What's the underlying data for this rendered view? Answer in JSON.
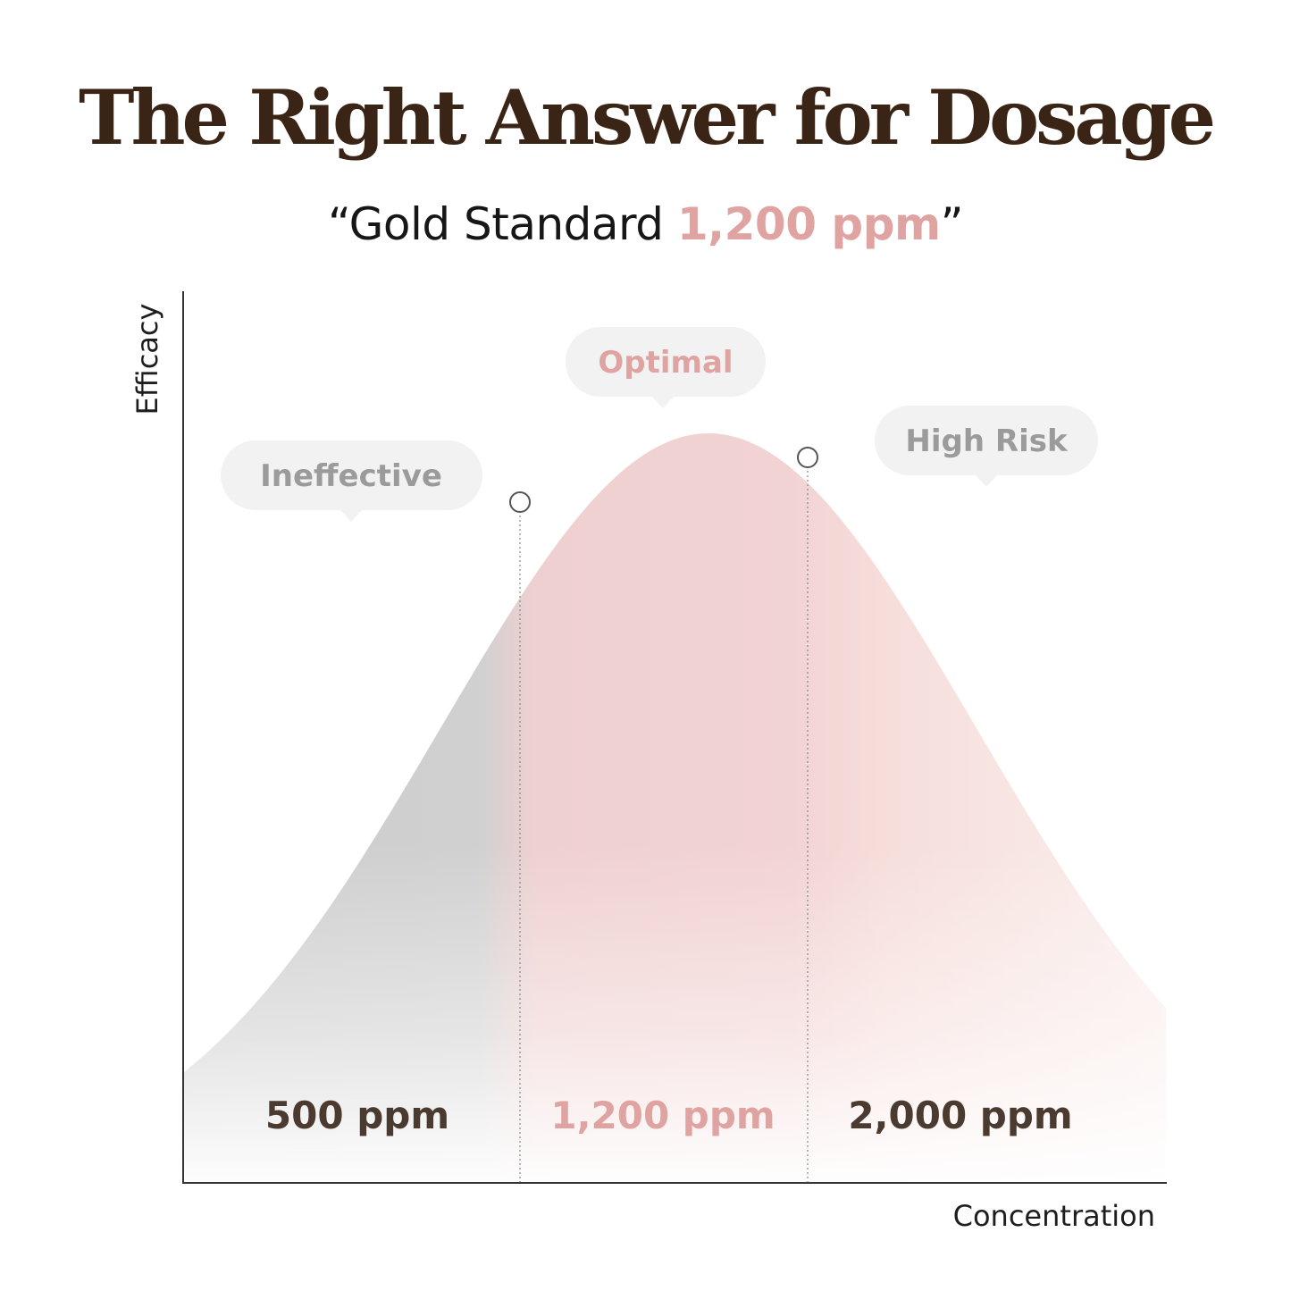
{
  "header": {
    "title": "The Right Answer for Dosage",
    "subtitle_open": "“Gold Standard ",
    "subtitle_highlight": "1,200 ppm",
    "subtitle_close": "”"
  },
  "chart_data": {
    "type": "area",
    "xlabel": "Concentration",
    "ylabel": "Efficacy",
    "curve_shape": "bell",
    "grid": false,
    "zones": [
      {
        "name": "Ineffective",
        "value_label": "500 ppm",
        "color": "#cccccc",
        "label_color": "#9b9b9b",
        "value_color": "#4a3a30"
      },
      {
        "name": "Optimal",
        "value_label": "1,200 ppm",
        "color": "#f0cccc",
        "label_color": "#dfa3a1",
        "value_color": "#dfa3a1"
      },
      {
        "name": "High Risk",
        "value_label": "2,000 ppm",
        "color": "#f6dcd8",
        "label_color": "#9b9b9b",
        "value_color": "#4a3a30"
      }
    ]
  },
  "colors": {
    "title": "#3a2416",
    "accent": "#dfa3a1",
    "axis": "#333333",
    "bubble": "#f2f2f2"
  }
}
